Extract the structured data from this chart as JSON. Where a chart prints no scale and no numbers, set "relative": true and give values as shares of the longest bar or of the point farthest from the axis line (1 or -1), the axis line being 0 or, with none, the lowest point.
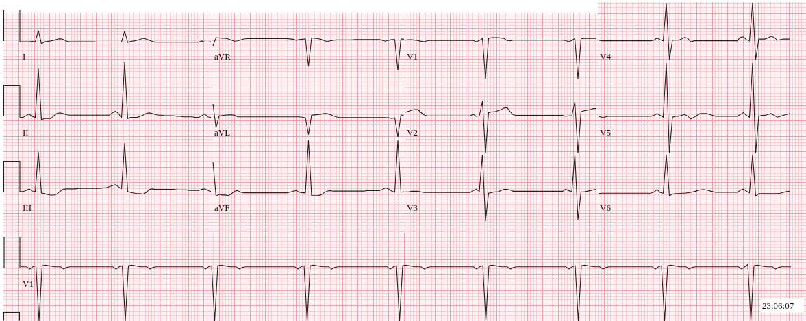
{
  "chart_data": [
    {
      "type": "line",
      "title": "I",
      "relative": true,
      "grid": true,
      "color": "#222222",
      "categories": [
        null,
        null,
        null,
        null,
        null,
        null,
        null,
        null,
        null,
        null,
        null,
        null,
        null,
        null,
        null,
        null,
        null,
        null,
        null,
        null,
        null,
        null,
        null,
        null,
        null,
        null,
        null,
        null,
        null,
        null,
        null,
        null,
        null,
        null,
        null,
        null,
        null,
        null,
        null,
        null,
        null,
        null,
        null,
        null,
        null,
        null,
        null,
        null,
        null,
        null,
        null,
        null,
        null,
        null,
        null,
        null,
        null,
        null,
        null,
        null,
        null,
        null,
        null
      ],
      "values": [
        0.15,
        0.15,
        0.15,
        0.15,
        0.18,
        0.15,
        1,
        0,
        0.15,
        0.18,
        0.21,
        0.26,
        0.33,
        0.38,
        0.33,
        0.21,
        0.15,
        0.15,
        0.15,
        0.15,
        0.15,
        0.15,
        0.15,
        0.15,
        0.15,
        0.13,
        0.13,
        0.13,
        0.13,
        0.13,
        0.13,
        0.13,
        0.13,
        0.13,
        0.97,
        0.1,
        0.18,
        0.21,
        0.26,
        0.33,
        0.41,
        0.36,
        0.26,
        0.18,
        0.12,
        0.12,
        0.12,
        0.12,
        0.12,
        0.12,
        0.12,
        0.12,
        0.12,
        0.12,
        0.12,
        0.12,
        0.12,
        0.12,
        0.12,
        0.21,
        0.13,
        0.13,
        0.15
      ]
    },
    {
      "type": "line",
      "title": "aVR",
      "relative": true,
      "grid": true,
      "color": "#222222",
      "categories": [
        null,
        null,
        null,
        null,
        null,
        null,
        null,
        null,
        null,
        null,
        null,
        null,
        null,
        null,
        null,
        null,
        null,
        null,
        null,
        null,
        null,
        null,
        null,
        null,
        null,
        null,
        null,
        null,
        null,
        null,
        null,
        null,
        null,
        null,
        null,
        null,
        null,
        null,
        null,
        null,
        null,
        null,
        null,
        null,
        null,
        null,
        null,
        null,
        null,
        null,
        null,
        null,
        null,
        null,
        null,
        null,
        null,
        null,
        null,
        null,
        null,
        null,
        null
      ],
      "values": [
        0.75,
        1,
        0.99,
        0.98,
        0.98,
        0.96,
        0.92,
        0.89,
        0.9,
        0.93,
        0.96,
        0.97,
        0.97,
        0.97,
        0.97,
        0.97,
        0.97,
        0.97,
        0.97,
        0.97,
        0.97,
        0.97,
        0.97,
        0.97,
        0.97,
        0.96,
        0.95,
        0.92,
        0.94,
        0.95,
        0.96,
        0.13,
        0.99,
        0.98,
        0.97,
        0.95,
        0.91,
        0.88,
        0.9,
        0.92,
        0.93,
        0.93,
        0.93,
        0.93,
        0.93,
        0.93,
        0.94,
        0.94,
        0.94,
        0.94,
        0.94,
        0.94,
        0.94,
        0.94,
        0.94,
        0.92,
        0.89,
        0.92,
        0.94,
        0.94,
        0,
        0.96,
        0.95
      ]
    },
    {
      "type": "line",
      "title": "V1",
      "relative": true,
      "grid": true,
      "color": "#222222",
      "categories": [
        null,
        null,
        null,
        null,
        null,
        null,
        null,
        null,
        null,
        null,
        null,
        null,
        null,
        null,
        null,
        null,
        null,
        null,
        null,
        null,
        null,
        null,
        null,
        null,
        null,
        null,
        null,
        null,
        null,
        null,
        null,
        null,
        null,
        null,
        null,
        null,
        null,
        null,
        null,
        null,
        null,
        null,
        null,
        null,
        null,
        null,
        null,
        null,
        null,
        null,
        null,
        null,
        null,
        null,
        null,
        null,
        null,
        null,
        null,
        null,
        null,
        null,
        null
      ],
      "values": [
        0.94,
        0.95,
        0.95,
        0.94,
        0.93,
        0.91,
        0.9,
        0.92,
        0.93,
        0.93,
        0.93,
        0.93,
        0.93,
        0.93,
        0.93,
        0.93,
        0.93,
        0.93,
        0.93,
        0.93,
        0.93,
        0.93,
        0.93,
        0.9,
        0.93,
        0.98,
        0,
        0.98,
        1,
        1,
        1,
        0.99,
        0.98,
        0.93,
        0.92,
        0.94,
        0.94,
        0.94,
        0.94,
        0.94,
        0.94,
        0.94,
        0.94,
        0.94,
        0.94,
        0.94,
        0.94,
        0.94,
        0.94,
        0.94,
        0.94,
        0.94,
        0.93,
        0.9,
        0.93,
        0.98,
        0,
        0.97,
        0.98,
        0.98,
        0.98,
        0.98,
        0.98
      ]
    },
    {
      "type": "line",
      "title": "V4",
      "relative": true,
      "grid": true,
      "color": "#222222",
      "categories": [
        null,
        null,
        null,
        null,
        null,
        null,
        null,
        null,
        null,
        null,
        null,
        null,
        null,
        null,
        null,
        null,
        null,
        null,
        null,
        null,
        null,
        null,
        null,
        null,
        null,
        null,
        null,
        null,
        null,
        null,
        null,
        null,
        null,
        null,
        null,
        null,
        null,
        null,
        null,
        null,
        null,
        null,
        null,
        null,
        null,
        null,
        null,
        null,
        null,
        null,
        null,
        null,
        null,
        null,
        null,
        null,
        null,
        null,
        null,
        null,
        null,
        null,
        null
      ],
      "values": [
        0.34,
        0.33,
        0.33,
        0.33,
        0.33,
        0.33,
        0.33,
        0.33,
        0.33,
        0.33,
        0.33,
        0.33,
        0.33,
        0.33,
        0.33,
        0.33,
        0.33,
        0.33,
        0.34,
        0.38,
        0.35,
        0.33,
        0.99,
        0,
        0.34,
        0.34,
        0.34,
        0.36,
        0.39,
        0.37,
        0.31,
        0.33,
        0.33,
        0.33,
        0.33,
        0.33,
        0.33,
        0.33,
        0.33,
        0.33,
        0.33,
        0.33,
        0.33,
        0.33,
        0.33,
        0.33,
        0.39,
        0.4,
        0.35,
        0.33,
        1,
        0,
        0.36,
        0.36,
        0.36,
        0.38,
        0.41,
        0.39,
        0.34,
        0.35,
        0.36,
        0.36,
        0.36
      ]
    },
    {
      "type": "line",
      "title": "II",
      "relative": true,
      "grid": true,
      "color": "#222222",
      "categories": [
        null,
        null,
        null,
        null,
        null,
        null,
        null,
        null,
        null,
        null,
        null,
        null,
        null,
        null,
        null,
        null,
        null,
        null,
        null,
        null,
        null,
        null,
        null,
        null,
        null,
        null,
        null,
        null,
        null,
        null,
        null,
        null,
        null,
        null,
        null,
        null,
        null,
        null,
        null,
        null,
        null,
        null,
        null,
        null,
        null,
        null,
        null,
        null,
        null,
        null,
        null,
        null,
        null,
        null,
        null,
        null,
        null,
        null,
        null,
        null,
        null,
        null,
        null
      ],
      "values": [
        0.04,
        0.04,
        0.07,
        0.1,
        0.06,
        0.04,
        0.89,
        0,
        0.02,
        0.02,
        0.02,
        0.07,
        0.11,
        0.12,
        0.11,
        0.09,
        0.08,
        0.08,
        0.08,
        0.08,
        0.08,
        0.08,
        0.08,
        0.08,
        0.08,
        0.08,
        0.08,
        0.08,
        0.08,
        0.08,
        0.12,
        0.15,
        0.11,
        0.03,
        1,
        0.02,
        0.04,
        0.04,
        0.04,
        0.06,
        0.08,
        0.11,
        0.12,
        0.11,
        0.09,
        0.08,
        0.08,
        0.07,
        0.07,
        0.07,
        0.07,
        0.06,
        0.06,
        0.05,
        0.05,
        0.05,
        0.05,
        0.04,
        0.04,
        0.07,
        0.1,
        0.05,
        0.04
      ]
    },
    {
      "type": "line",
      "title": "aVL",
      "relative": true,
      "grid": true,
      "color": "#222222",
      "categories": [
        null,
        null,
        null,
        null,
        null,
        null,
        null,
        null,
        null,
        null,
        null,
        null,
        null,
        null,
        null,
        null,
        null,
        null,
        null,
        null,
        null,
        null,
        null,
        null,
        null,
        null,
        null,
        null,
        null,
        null,
        null,
        null,
        null,
        null,
        null,
        null,
        null,
        null,
        null,
        null,
        null,
        null,
        null,
        null,
        null,
        null,
        null,
        null,
        null,
        null,
        null,
        null,
        null,
        null,
        null,
        null,
        null,
        null,
        null,
        null,
        null,
        null,
        null
      ],
      "values": [
        1,
        0.28,
        0.64,
        0.65,
        0.66,
        0.67,
        0.67,
        0.66,
        0.61,
        0.61,
        0.61,
        0.61,
        0.61,
        0.61,
        0.61,
        0.61,
        0.61,
        0.61,
        0.61,
        0.61,
        0.61,
        0.61,
        0.61,
        0.61,
        0.61,
        0.61,
        0.61,
        0.61,
        0.61,
        0.6,
        0.58,
        0.07,
        0.66,
        0.67,
        0.68,
        0.69,
        0.71,
        0.71,
        0.68,
        0.64,
        0.61,
        0.59,
        0.59,
        0.59,
        0.59,
        0.59,
        0.59,
        0.59,
        0.59,
        0.59,
        0.59,
        0.59,
        0.59,
        0.59,
        0.59,
        0.59,
        0.59,
        0.58,
        0.56,
        0.58,
        0,
        0.67,
        0.64
      ]
    },
    {
      "type": "line",
      "title": "V2",
      "relative": true,
      "grid": true,
      "color": "#222222",
      "categories": [
        null,
        null,
        null,
        null,
        null,
        null,
        null,
        null,
        null,
        null,
        null,
        null,
        null,
        null,
        null,
        null,
        null,
        null,
        null,
        null,
        null,
        null,
        null,
        null,
        null,
        null,
        null,
        null,
        null,
        null,
        null,
        null,
        null,
        null,
        null,
        null,
        null,
        null,
        null,
        null,
        null,
        null,
        null,
        null,
        null,
        null,
        null,
        null,
        null,
        null,
        null,
        null,
        null,
        null,
        null,
        null,
        null,
        null,
        null,
        null,
        null,
        null,
        null
      ],
      "values": [
        0.79,
        0.81,
        0.83,
        0.84,
        0.84,
        0.79,
        0.74,
        0.72,
        0.72,
        0.72,
        0.72,
        0.72,
        0.72,
        0.72,
        0.72,
        0.72,
        0.72,
        0.72,
        0.72,
        0.72,
        0.72,
        0.72,
        0.75,
        0.71,
        0.72,
        1,
        0,
        0.78,
        0.8,
        0.8,
        0.82,
        0.84,
        0.87,
        0.88,
        0.8,
        0.74,
        0.73,
        0.73,
        0.73,
        0.73,
        0.73,
        0.73,
        0.73,
        0.73,
        0.73,
        0.73,
        0.73,
        0.73,
        0.73,
        0.73,
        0.73,
        0.73,
        0.71,
        0.72,
        0.72,
        0.99,
        0,
        0.8,
        0.82,
        0.83,
        0.84,
        0.86,
        0.86
      ]
    },
    {
      "type": "line",
      "title": "V5",
      "relative": true,
      "grid": true,
      "color": "#222222",
      "categories": [
        null,
        null,
        null,
        null,
        null,
        null,
        null,
        null,
        null,
        null,
        null,
        null,
        null,
        null,
        null,
        null,
        null,
        null,
        null,
        null,
        null,
        null,
        null,
        null,
        null,
        null,
        null,
        null,
        null,
        null,
        null,
        null,
        null,
        null,
        null,
        null,
        null,
        null,
        null,
        null,
        null,
        null,
        null,
        null,
        null,
        null,
        null,
        null,
        null,
        null,
        null,
        null,
        null,
        null,
        null,
        null,
        null,
        null,
        null,
        null,
        null,
        null,
        null
      ],
      "values": [
        0.41,
        0.4,
        0.4,
        0.41,
        0.41,
        0.41,
        0.41,
        0.41,
        0.41,
        0.41,
        0.41,
        0.41,
        0.41,
        0.41,
        0.41,
        0.41,
        0.41,
        0.41,
        0.42,
        0.44,
        0.42,
        0.4,
        1,
        0,
        0.4,
        0.41,
        0.41,
        0.42,
        0.43,
        0.41,
        0.38,
        0.4,
        0.42,
        0.44,
        0.44,
        0.44,
        0.43,
        0.42,
        0.41,
        0.41,
        0.41,
        0.41,
        0.41,
        0.41,
        0.41,
        0.41,
        0.43,
        0.45,
        0.42,
        0.4,
        1,
        0,
        0.41,
        0.42,
        0.42,
        0.43,
        0.44,
        0.42,
        0.4,
        0.41,
        0.42,
        0.43,
        0.44
      ]
    },
    {
      "type": "line",
      "title": "III",
      "relative": true,
      "grid": true,
      "color": "#222222",
      "categories": [
        null,
        null,
        null,
        null,
        null,
        null,
        null,
        null,
        null,
        null,
        null,
        null,
        null,
        null,
        null,
        null,
        null,
        null,
        null,
        null,
        null,
        null,
        null,
        null,
        null,
        null,
        null,
        null,
        null,
        null,
        null,
        null,
        null,
        null,
        null,
        null,
        null,
        null,
        null,
        null,
        null,
        null,
        null,
        null,
        null,
        null,
        null,
        null,
        null,
        null,
        null,
        null,
        null,
        null,
        null,
        null,
        null,
        null,
        null,
        null,
        null,
        null,
        null
      ],
      "values": [
        0.07,
        0.07,
        0.09,
        0.12,
        0.08,
        0.07,
        0.83,
        0.04,
        0.03,
        0.01,
        0,
        0,
        0.02,
        0.07,
        0.11,
        0.12,
        0.12,
        0.12,
        0.12,
        0.13,
        0.13,
        0.13,
        0.13,
        0.13,
        0.13,
        0.13,
        0.13,
        0.14,
        0.14,
        0.16,
        0.18,
        0.2,
        0.16,
        0.12,
        1,
        0.07,
        0.05,
        0.04,
        0.03,
        0.03,
        0.02,
        0.05,
        0.11,
        0.12,
        0.11,
        0.11,
        0.11,
        0.11,
        0.11,
        0.11,
        0.11,
        0.1,
        0.1,
        0.1,
        0.1,
        0.09,
        0.09,
        0.09,
        0.09,
        0.11,
        0.12,
        0.09,
        0.07
      ]
    },
    {
      "type": "line",
      "title": "aVF",
      "relative": true,
      "grid": true,
      "color": "#222222",
      "categories": [
        null,
        null,
        null,
        null,
        null,
        null,
        null,
        null,
        null,
        null,
        null,
        null,
        null,
        null,
        null,
        null,
        null,
        null,
        null,
        null,
        null,
        null,
        null,
        null,
        null,
        null,
        null,
        null,
        null,
        null,
        null,
        null,
        null,
        null,
        null,
        null,
        null,
        null,
        null,
        null,
        null,
        null,
        null,
        null,
        null,
        null,
        null,
        null,
        null,
        null,
        null,
        null,
        null,
        null,
        null,
        null,
        null,
        null,
        null,
        null,
        null,
        null,
        null
      ],
      "values": [
        0.61,
        0,
        0.03,
        0.02,
        0.02,
        0.01,
        0.04,
        0.09,
        0.1,
        0.07,
        0.06,
        0.06,
        0.06,
        0.06,
        0.06,
        0.06,
        0.06,
        0.06,
        0.06,
        0.06,
        0.06,
        0.06,
        0.06,
        0.06,
        0.06,
        0.07,
        0.09,
        0.1,
        0.07,
        0.06,
        0.06,
        1,
        0.01,
        0.01,
        0.01,
        0.02,
        0.06,
        0.09,
        0.1,
        0.09,
        0.09,
        0.09,
        0.09,
        0.09,
        0.09,
        0.09,
        0.09,
        0.09,
        0.09,
        0.09,
        0.1,
        0.1,
        0.1,
        0.1,
        0.1,
        0.12,
        0.15,
        0.13,
        0.09,
        0.07,
        1,
        0.07,
        0.08
      ]
    },
    {
      "type": "line",
      "title": "V3",
      "relative": true,
      "grid": true,
      "color": "#222222",
      "categories": [
        null,
        null,
        null,
        null,
        null,
        null,
        null,
        null,
        null,
        null,
        null,
        null,
        null,
        null,
        null,
        null,
        null,
        null,
        null,
        null,
        null,
        null,
        null,
        null,
        null,
        null,
        null,
        null,
        null,
        null,
        null,
        null,
        null,
        null,
        null,
        null,
        null,
        null,
        null,
        null,
        null,
        null,
        null,
        null,
        null,
        null,
        null,
        null,
        null,
        null,
        null,
        null,
        null,
        null,
        null,
        null,
        null,
        null,
        null,
        null,
        null,
        null,
        null
      ],
      "values": [
        0.44,
        0.44,
        0.45,
        0.45,
        0.45,
        0.44,
        0.43,
        0.43,
        0.43,
        0.43,
        0.43,
        0.43,
        0.43,
        0.43,
        0.43,
        0.43,
        0.43,
        0.43,
        0.43,
        0.43,
        0.43,
        0.43,
        0.46,
        0.48,
        0.45,
        1,
        0,
        0.42,
        0.43,
        0.44,
        0.44,
        0.46,
        0.48,
        0.48,
        0.47,
        0.45,
        0.45,
        0.45,
        0.45,
        0.45,
        0.45,
        0.45,
        0.45,
        0.45,
        0.45,
        0.45,
        0.45,
        0.45,
        0.45,
        0.45,
        0.45,
        0.45,
        0.48,
        0.46,
        0.44,
        1,
        0.02,
        0.44,
        0.44,
        0.45,
        0.46,
        0.47,
        0.48
      ]
    },
    {
      "type": "line",
      "title": "V6",
      "relative": true,
      "grid": true,
      "color": "#222222",
      "categories": [
        null,
        null,
        null,
        null,
        null,
        null,
        null,
        null,
        null,
        null,
        null,
        null,
        null,
        null,
        null,
        null,
        null,
        null,
        null,
        null,
        null,
        null,
        null,
        null,
        null,
        null,
        null,
        null,
        null,
        null,
        null,
        null,
        null,
        null,
        null,
        null,
        null,
        null,
        null,
        null,
        null,
        null,
        null,
        null,
        null,
        null,
        null,
        null,
        null,
        null,
        null,
        null,
        null,
        null,
        null,
        null,
        null,
        null,
        null,
        null,
        null,
        null,
        null
      ],
      "values": [
        0.06,
        0.07,
        0.07,
        0.07,
        0.07,
        0.07,
        0.07,
        0.07,
        0.07,
        0.07,
        0.07,
        0.07,
        0.07,
        0.07,
        0.07,
        0.07,
        0.07,
        0.07,
        0.1,
        0.16,
        0.09,
        0.07,
        1,
        0.01,
        0.05,
        0.06,
        0.06,
        0.07,
        0.07,
        0.08,
        0.09,
        0.11,
        0.13,
        0.15,
        0.16,
        0.15,
        0.13,
        0.11,
        0.09,
        0.09,
        0.09,
        0.09,
        0.09,
        0.09,
        0.09,
        0.09,
        0.14,
        0.17,
        0.12,
        0.08,
        1,
        0,
        0.06,
        0.06,
        0.06,
        0.06,
        0.06,
        0.06,
        0.06,
        0.07,
        0.09,
        0.11,
        0.12
      ]
    },
    {
      "type": "line",
      "title": "V1",
      "relative": true,
      "grid": true,
      "color": "#222222",
      "annotations": [
        "23:06:07"
      ],
      "categories": [
        null,
        null,
        null,
        null,
        null,
        null,
        null,
        null,
        null,
        null,
        null,
        null,
        null,
        null,
        null,
        null,
        null,
        null,
        null,
        null,
        null,
        null,
        null,
        null,
        null,
        null,
        null,
        null,
        null,
        null,
        null,
        null,
        null,
        null,
        null,
        null,
        null,
        null,
        null,
        null,
        null,
        null,
        null,
        null,
        null,
        null,
        null,
        null,
        null,
        null,
        null,
        null,
        null,
        null,
        null,
        null,
        null,
        null,
        null,
        null,
        null,
        null,
        null,
        null,
        null,
        null,
        null,
        null,
        null,
        null,
        null,
        null,
        null,
        null,
        null,
        null,
        null,
        null,
        null,
        null,
        null,
        null,
        null,
        null,
        null,
        null,
        null,
        null,
        null,
        null,
        null,
        null,
        null,
        null,
        null,
        null,
        null,
        null,
        null,
        null,
        null,
        null,
        null,
        null,
        null,
        null,
        null,
        null,
        null,
        null,
        null,
        null,
        null,
        null,
        null,
        null,
        null,
        null,
        null,
        null,
        null,
        null,
        null,
        null,
        null,
        null,
        null,
        null,
        null,
        null,
        null,
        null,
        null,
        null,
        null,
        null,
        null,
        null,
        null,
        null,
        null,
        null,
        null,
        null,
        null,
        null,
        null,
        null,
        null,
        null,
        null,
        null,
        null,
        null,
        null,
        null,
        null,
        null,
        null,
        null,
        null,
        null,
        null,
        null,
        null,
        null,
        null,
        null,
        null,
        null,
        null,
        null,
        null,
        null,
        null,
        null,
        null,
        null,
        null,
        null,
        null,
        null,
        null,
        null,
        null,
        null,
        null,
        null,
        null,
        null,
        null,
        null,
        null,
        null,
        null,
        null,
        null,
        null,
        null,
        null,
        null,
        null,
        null,
        null,
        null,
        null,
        null,
        null,
        null,
        null,
        null,
        null,
        null,
        null,
        null,
        null,
        null,
        null,
        null,
        null,
        null,
        null,
        null,
        null,
        null,
        null,
        null,
        null,
        null,
        null,
        null,
        null,
        null,
        null,
        null,
        null,
        null,
        null,
        null,
        null,
        null,
        null,
        null,
        null,
        null,
        null,
        null,
        null,
        null,
        null,
        null
      ],
      "values": [
        0.96,
        0.96,
        0.96,
        0.92,
        0.96,
        0.98,
        0,
        0.98,
        0.99,
        0.98,
        0.97,
        0.96,
        0.96,
        0.96,
        0.92,
        0.95,
        0.96,
        0.96,
        0.96,
        0.96,
        0.96,
        0.96,
        0.96,
        0.96,
        0.96,
        0.96,
        0.96,
        0.96,
        0.96,
        0.96,
        0.96,
        0.92,
        0.96,
        0.98,
        0,
        0.98,
        0.99,
        0.98,
        0.97,
        0.96,
        0.96,
        0.96,
        0.92,
        0.95,
        0.96,
        0.96,
        0.96,
        0.96,
        0.96,
        0.96,
        0.96,
        0.96,
        0.96,
        0.96,
        0.96,
        0.96,
        0.96,
        0.96,
        0.96,
        0.96,
        0.92,
        0.96,
        0.98,
        0,
        0.98,
        0.99,
        0.98,
        0.97,
        0.96,
        0.96,
        0.96,
        0.92,
        0.95,
        0.96,
        0.96,
        0.96,
        0.96,
        0.96,
        0.96,
        0.96,
        0.96,
        0.96,
        0.96,
        0.96,
        0.96,
        0.96,
        0.96,
        0.96,
        0.96,
        0.96,
        0.92,
        0.96,
        0.98,
        0,
        0.98,
        0.99,
        0.98,
        0.97,
        0.96,
        0.96,
        0.96,
        0.92,
        0.95,
        0.96,
        0.96,
        0.96,
        0.96,
        0.96,
        0.96,
        0.96,
        0.96,
        0.96,
        0.96,
        0.96,
        0.96,
        0.96,
        0.96,
        0.96,
        0.96,
        0.96,
        0.92,
        0.96,
        0.98,
        0,
        0.98,
        0.99,
        0.98,
        0.97,
        0.96,
        0.96,
        0.96,
        0.92,
        0.95,
        0.96,
        0.96,
        0.96,
        0.96,
        0.96,
        0.96,
        0.96,
        0.96,
        0.96,
        0.96,
        0.96,
        0.96,
        0.96,
        0.96,
        0.96,
        0.92,
        0.96,
        0.98,
        0,
        0.98,
        0.99,
        0.98,
        0.97,
        0.96,
        0.96,
        0.96,
        0.92,
        0.95,
        0.96,
        0.96,
        0.96,
        0.96,
        0.96,
        0.96,
        0.96,
        0.96,
        0.96,
        0.96,
        0.96,
        0.96,
        0.96,
        0.96,
        0.96,
        0.96,
        0.96,
        0.92,
        0.96,
        0.98,
        0,
        0.98,
        0.99,
        0.98,
        0.97,
        0.96,
        0.96,
        0.96,
        0.92,
        0.95,
        0.96,
        0.96,
        0.96,
        0.96,
        0.96,
        0.96,
        0.96,
        0.96,
        0.96,
        0.96,
        0.96,
        0.96,
        0.96,
        0.96,
        0.96,
        0.92,
        0.96,
        0.98,
        0,
        0.98,
        0.99,
        0.98,
        0.97,
        0.96,
        0.96,
        0.96,
        0.92,
        0.95,
        0.96,
        0.96,
        0.96,
        0.96,
        0.96,
        0.96,
        0.96,
        0.96,
        0.96,
        0.96,
        0.96,
        0.96,
        0.96,
        0.96,
        0.96,
        0.92,
        0.96,
        1,
        0,
        0.98,
        0.99,
        0.98,
        0.97,
        0.96,
        0.96,
        0.96,
        0.92,
        0.95,
        0.96,
        0.96,
        0.96,
        0.96
      ]
    }
  ]
}
